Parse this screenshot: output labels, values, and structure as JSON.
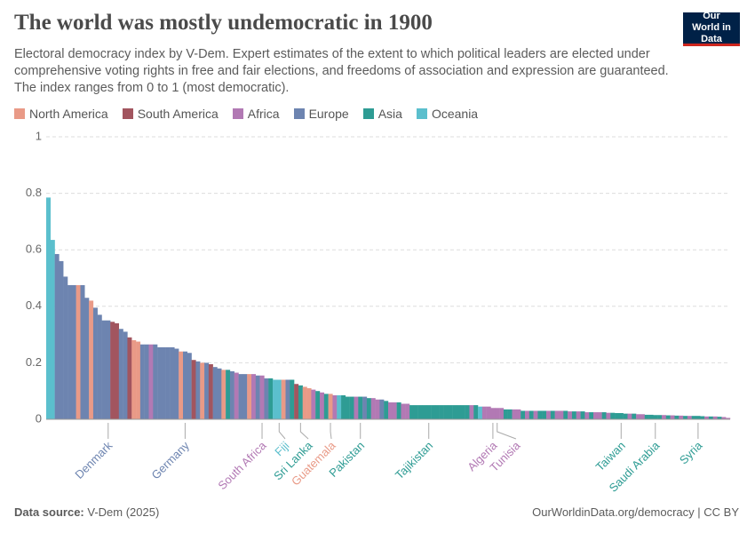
{
  "header": {
    "title": "The world was mostly undemocratic in 1900",
    "subtitle": "Electoral democracy index by V-Dem. Expert estimates of the extent to which political leaders are elected under comprehensive voting rights in free and fair elections, and freedoms of association and expression are guaranteed. The index ranges from 0 to 1 (most democratic).",
    "logo": "Our World in Data"
  },
  "chart_data": {
    "type": "bar",
    "legend": [
      {
        "name": "North America",
        "color": "#e99a87"
      },
      {
        "name": "South America",
        "color": "#a2555f"
      },
      {
        "name": "Africa",
        "color": "#b279b4"
      },
      {
        "name": "Europe",
        "color": "#6d84b0"
      },
      {
        "name": "Asia",
        "color": "#2e9c94"
      },
      {
        "name": "Oceania",
        "color": "#5bbfcd"
      }
    ],
    "categories": [
      null,
      null,
      null,
      null,
      null,
      null,
      null,
      null,
      null,
      null,
      null,
      null,
      null,
      null,
      "Denmark",
      null,
      null,
      null,
      null,
      null,
      null,
      null,
      null,
      null,
      null,
      null,
      null,
      null,
      null,
      null,
      null,
      null,
      "Germany",
      null,
      null,
      null,
      null,
      null,
      null,
      null,
      null,
      null,
      null,
      null,
      null,
      null,
      null,
      null,
      null,
      null,
      "South Africa",
      null,
      null,
      null,
      "Fiji",
      null,
      null,
      null,
      null,
      "Sri Lanka",
      null,
      null,
      null,
      null,
      null,
      null,
      "Guatemala",
      null,
      null,
      null,
      null,
      null,
      null,
      "Pakistan",
      null,
      null,
      null,
      null,
      null,
      null,
      null,
      null,
      null,
      null,
      null,
      null,
      null,
      null,
      null,
      "Tajikistan",
      null,
      null,
      null,
      null,
      null,
      null,
      null,
      null,
      null,
      null,
      null,
      null,
      null,
      null,
      "Algeria",
      "Tunisia",
      null,
      null,
      null,
      null,
      null,
      null,
      null,
      null,
      null,
      null,
      null,
      null,
      null,
      null,
      null,
      null,
      null,
      null,
      null,
      null,
      null,
      null,
      null,
      null,
      null,
      null,
      null,
      null,
      "Taiwan",
      null,
      null,
      null,
      null,
      null,
      null,
      null,
      "Saudi Arabia",
      null,
      null,
      null,
      null,
      null,
      null,
      null,
      null,
      null,
      "Syria",
      null,
      null,
      null,
      null,
      null,
      null,
      null
    ],
    "values": [
      0.785,
      0.635,
      0.585,
      0.56,
      0.505,
      0.475,
      0.475,
      0.475,
      0.475,
      0.43,
      0.42,
      0.395,
      0.37,
      0.35,
      0.35,
      0.345,
      0.34,
      0.32,
      0.31,
      0.29,
      0.28,
      0.275,
      0.265,
      0.265,
      0.265,
      0.265,
      0.255,
      0.255,
      0.255,
      0.255,
      0.25,
      0.24,
      0.24,
      0.235,
      0.21,
      0.205,
      0.2,
      0.2,
      0.195,
      0.185,
      0.18,
      0.175,
      0.175,
      0.17,
      0.165,
      0.16,
      0.16,
      0.16,
      0.16,
      0.155,
      0.155,
      0.145,
      0.145,
      0.14,
      0.14,
      0.14,
      0.14,
      0.14,
      0.125,
      0.12,
      0.115,
      0.11,
      0.105,
      0.1,
      0.095,
      0.09,
      0.09,
      0.085,
      0.085,
      0.085,
      0.08,
      0.08,
      0.08,
      0.08,
      0.08,
      0.075,
      0.075,
      0.07,
      0.07,
      0.065,
      0.06,
      0.06,
      0.06,
      0.055,
      0.055,
      0.05,
      0.05,
      0.05,
      0.05,
      0.05,
      0.05,
      0.05,
      0.05,
      0.05,
      0.05,
      0.05,
      0.05,
      0.05,
      0.05,
      0.05,
      0.05,
      0.045,
      0.045,
      0.045,
      0.04,
      0.04,
      0.04,
      0.035,
      0.035,
      0.035,
      0.035,
      0.03,
      0.03,
      0.03,
      0.03,
      0.03,
      0.03,
      0.03,
      0.03,
      0.03,
      0.03,
      0.03,
      0.028,
      0.028,
      0.028,
      0.028,
      0.025,
      0.025,
      0.025,
      0.025,
      0.025,
      0.023,
      0.023,
      0.022,
      0.022,
      0.02,
      0.02,
      0.02,
      0.018,
      0.018,
      0.016,
      0.016,
      0.015,
      0.015,
      0.015,
      0.014,
      0.014,
      0.013,
      0.013,
      0.012,
      0.012,
      0.012,
      0.012,
      0.011,
      0.01,
      0.01,
      0.01,
      0.009,
      0.008,
      0.005
    ],
    "colors": [
      "#5bbfcd",
      "#5bbfcd",
      "#6d84b0",
      "#6d84b0",
      "#6d84b0",
      "#6d84b0",
      "#6d84b0",
      "#e99a87",
      "#6d84b0",
      "#6d84b0",
      "#e99a87",
      "#6d84b0",
      "#6d84b0",
      "#6d84b0",
      "#6d84b0",
      "#a2555f",
      "#a2555f",
      "#6d84b0",
      "#6d84b0",
      "#a2555f",
      "#e99a87",
      "#e99a87",
      "#6d84b0",
      "#6d84b0",
      "#b279b4",
      "#6d84b0",
      "#6d84b0",
      "#6d84b0",
      "#6d84b0",
      "#6d84b0",
      "#6d84b0",
      "#e99a87",
      "#6d84b0",
      "#6d84b0",
      "#a2555f",
      "#6d84b0",
      "#e99a87",
      "#6d84b0",
      "#a2555f",
      "#6d84b0",
      "#6d84b0",
      "#e99a87",
      "#2e9c94",
      "#6d84b0",
      "#b279b4",
      "#6d84b0",
      "#6d84b0",
      "#e99a87",
      "#b279b4",
      "#6d84b0",
      "#b279b4",
      "#6d84b0",
      "#2e9c94",
      "#5bbfcd",
      "#5bbfcd",
      "#e99a87",
      "#6d84b0",
      "#2e9c94",
      "#a2555f",
      "#2e9c94",
      "#e99a87",
      "#e99a87",
      "#b279b4",
      "#2e9c94",
      "#b279b4",
      "#2e9c94",
      "#e99a87",
      "#b279b4",
      "#5bbfcd",
      "#2e9c94",
      "#2e9c94",
      "#2e9c94",
      "#b279b4",
      "#2e9c94",
      "#6d84b0",
      "#2e9c94",
      "#b279b4",
      "#b279b4",
      "#6d84b0",
      "#2e9c94",
      "#b279b4",
      "#b279b4",
      "#2e9c94",
      "#b279b4",
      "#b279b4",
      "#2e9c94",
      "#2e9c94",
      "#2e9c94",
      "#2e9c94",
      "#2e9c94",
      "#2e9c94",
      "#2e9c94",
      "#2e9c94",
      "#2e9c94",
      "#2e9c94",
      "#2e9c94",
      "#2e9c94",
      "#2e9c94",
      "#2e9c94",
      "#b279b4",
      "#2e9c94",
      "#5bbfcd",
      "#b279b4",
      "#b279b4",
      "#b279b4",
      "#b279b4",
      "#b279b4",
      "#2e9c94",
      "#2e9c94",
      "#b279b4",
      "#b279b4",
      "#2e9c94",
      "#b279b4",
      "#2e9c94",
      "#b279b4",
      "#2e9c94",
      "#2e9c94",
      "#b279b4",
      "#2e9c94",
      "#b279b4",
      "#b279b4",
      "#2e9c94",
      "#b279b4",
      "#2e9c94",
      "#b279b4",
      "#2e9c94",
      "#b279b4",
      "#2e9c94",
      "#b279b4",
      "#b279b4",
      "#2e9c94",
      "#b279b4",
      "#2e9c94",
      "#2e9c94",
      "#2e9c94",
      "#2e9c94",
      "#b279b4",
      "#2e9c94",
      "#b279b4",
      "#b279b4",
      "#2e9c94",
      "#2e9c94",
      "#2e9c94",
      "#2e9c94",
      "#b279b4",
      "#2e9c94",
      "#b279b4",
      "#2e9c94",
      "#b279b4",
      "#2e9c94",
      "#b279b4",
      "#2e9c94",
      "#2e9c94",
      "#2e9c94",
      "#b279b4",
      "#2e9c94",
      "#b279b4",
      "#2e9c94",
      "#b279b4",
      "#b279b4"
    ],
    "ylim": [
      0,
      1
    ],
    "yticks": [
      0,
      0.2,
      0.4,
      0.6,
      0.8,
      1
    ],
    "grid": true
  },
  "footer": {
    "source_label": "Data source:",
    "source": "V-Dem (2025)",
    "credit": "OurWorldinData.org/democracy | CC BY"
  }
}
